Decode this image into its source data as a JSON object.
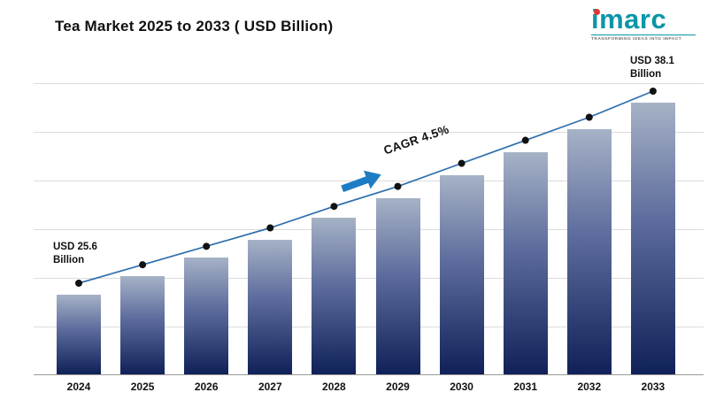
{
  "header": {
    "title": "Tea Market 2025 to 2033 ( USD Billion)"
  },
  "logo": {
    "name": "imarc",
    "tagline": "TRANSFORMING IDEAS INTO IMPACT",
    "brand_color": "#0a96a8",
    "dot_color": "#e8322e"
  },
  "annotations": {
    "start_label": "USD 25.6\nBillion",
    "end_label": "USD 38.1\nBillion",
    "cagr_label": "CAGR  4.5%"
  },
  "chart_data": {
    "type": "bar",
    "title": "Tea Market 2025 to 2033 ( USD Billion)",
    "categories": [
      "2024",
      "2025",
      "2026",
      "2027",
      "2028",
      "2029",
      "2030",
      "2031",
      "2032",
      "2033"
    ],
    "series": [
      {
        "name": "Tea Market Size (USD Billion)",
        "type": "bar",
        "values": [
          25.6,
          26.8,
          28.0,
          29.2,
          30.6,
          31.9,
          33.4,
          34.9,
          36.4,
          38.1
        ]
      },
      {
        "name": "Trend Line",
        "type": "line",
        "values": [
          25.6,
          26.8,
          28.0,
          29.2,
          30.6,
          31.9,
          33.4,
          34.9,
          36.4,
          38.1
        ]
      }
    ],
    "xlabel": "",
    "ylabel": "USD Billion",
    "ylim": [
      24,
      39.5
    ],
    "grid": true,
    "legend": "none",
    "annotations": [
      {
        "text": "USD 25.6 Billion",
        "target": "2024"
      },
      {
        "text": "USD 38.1 Billion",
        "target": "2033"
      },
      {
        "text": "CAGR 4.5%",
        "target": "between 2028 and 2029"
      }
    ],
    "colors": {
      "bar_top": "#a6b2c6",
      "bar_mid": "#5f6e9e",
      "bar_bottom": "#0f2158",
      "line": "#2f6fad",
      "marker": "#111111",
      "arrow": "#1d7dc4"
    }
  }
}
